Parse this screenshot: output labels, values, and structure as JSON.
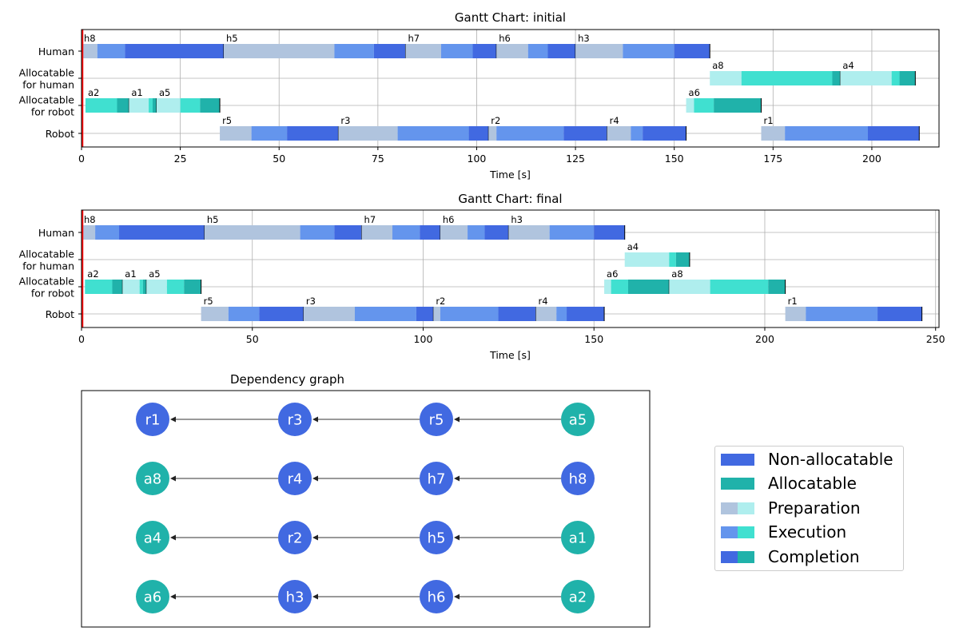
{
  "chart_data": [
    {
      "type": "gantt",
      "title": "Gantt Chart: initial",
      "xlabel": "Time [s]",
      "xlim": [
        0,
        217
      ],
      "xticks": [
        0,
        25,
        50,
        75,
        100,
        125,
        150,
        175,
        200
      ],
      "rows": [
        "Human",
        "Allocatable\nfor human",
        "Allocatable\nfor robot",
        "Robot"
      ],
      "start_marker": 0,
      "tasks": [
        {
          "name": "h8",
          "row": 0,
          "kind": "non-allocatable",
          "prep": [
            0,
            4
          ],
          "exec": [
            4,
            11
          ],
          "comp": [
            11,
            36
          ]
        },
        {
          "name": "h5",
          "row": 0,
          "kind": "non-allocatable",
          "prep": [
            36,
            64
          ],
          "exec": [
            64,
            74
          ],
          "comp": [
            74,
            82
          ]
        },
        {
          "name": "h7",
          "row": 0,
          "kind": "non-allocatable",
          "prep": [
            82,
            91
          ],
          "exec": [
            91,
            99
          ],
          "comp": [
            99,
            105
          ]
        },
        {
          "name": "h6",
          "row": 0,
          "kind": "non-allocatable",
          "prep": [
            105,
            113
          ],
          "exec": [
            113,
            118
          ],
          "comp": [
            118,
            125
          ]
        },
        {
          "name": "h3",
          "row": 0,
          "kind": "non-allocatable",
          "prep": [
            125,
            137
          ],
          "exec": [
            137,
            150
          ],
          "comp": [
            150,
            159
          ]
        },
        {
          "name": "a8",
          "row": 1,
          "kind": "allocatable",
          "prep": [
            159,
            167
          ],
          "exec": [
            167,
            190
          ],
          "comp": [
            190,
            192
          ]
        },
        {
          "name": "a4",
          "row": 1,
          "kind": "allocatable",
          "prep": [
            192,
            205
          ],
          "exec": [
            205,
            207
          ],
          "comp": [
            207,
            211
          ]
        },
        {
          "name": "a2",
          "row": 2,
          "kind": "allocatable",
          "prep": [
            1,
            1
          ],
          "exec": [
            1,
            9
          ],
          "comp": [
            9,
            12
          ]
        },
        {
          "name": "a1",
          "row": 2,
          "kind": "allocatable",
          "prep": [
            12,
            17
          ],
          "exec": [
            17,
            18
          ],
          "comp": [
            18,
            19
          ]
        },
        {
          "name": "a5",
          "row": 2,
          "kind": "allocatable",
          "prep": [
            19,
            25
          ],
          "exec": [
            25,
            30
          ],
          "comp": [
            30,
            35
          ]
        },
        {
          "name": "a6",
          "row": 2,
          "kind": "allocatable",
          "prep": [
            153,
            155
          ],
          "exec": [
            155,
            160
          ],
          "comp": [
            160,
            172
          ]
        },
        {
          "name": "r5",
          "row": 3,
          "kind": "non-allocatable",
          "prep": [
            35,
            43
          ],
          "exec": [
            43,
            52
          ],
          "comp": [
            52,
            65
          ]
        },
        {
          "name": "r3",
          "row": 3,
          "kind": "non-allocatable",
          "prep": [
            65,
            80
          ],
          "exec": [
            80,
            98
          ],
          "comp": [
            98,
            103
          ]
        },
        {
          "name": "r2",
          "row": 3,
          "kind": "non-allocatable",
          "prep": [
            103,
            105
          ],
          "exec": [
            105,
            122
          ],
          "comp": [
            122,
            133
          ]
        },
        {
          "name": "r4",
          "row": 3,
          "kind": "non-allocatable",
          "prep": [
            133,
            139
          ],
          "exec": [
            139,
            142
          ],
          "comp": [
            142,
            153
          ]
        },
        {
          "name": "r1",
          "row": 3,
          "kind": "non-allocatable",
          "prep": [
            172,
            178
          ],
          "exec": [
            178,
            199
          ],
          "comp": [
            199,
            212
          ]
        }
      ]
    },
    {
      "type": "gantt",
      "title": "Gantt Chart: final",
      "xlabel": "Time [s]",
      "xlim": [
        0,
        251
      ],
      "xticks": [
        0,
        50,
        100,
        150,
        200,
        250
      ],
      "rows": [
        "Human",
        "Allocatable\nfor human",
        "Allocatable\nfor robot",
        "Robot"
      ],
      "start_marker": 0,
      "tasks": [
        {
          "name": "h8",
          "row": 0,
          "kind": "non-allocatable",
          "prep": [
            0,
            4
          ],
          "exec": [
            4,
            11
          ],
          "comp": [
            11,
            36
          ]
        },
        {
          "name": "h5",
          "row": 0,
          "kind": "non-allocatable",
          "prep": [
            36,
            64
          ],
          "exec": [
            64,
            74
          ],
          "comp": [
            74,
            82
          ]
        },
        {
          "name": "h7",
          "row": 0,
          "kind": "non-allocatable",
          "prep": [
            82,
            91
          ],
          "exec": [
            91,
            99
          ],
          "comp": [
            99,
            105
          ]
        },
        {
          "name": "h6",
          "row": 0,
          "kind": "non-allocatable",
          "prep": [
            105,
            113
          ],
          "exec": [
            113,
            118
          ],
          "comp": [
            118,
            125
          ]
        },
        {
          "name": "h3",
          "row": 0,
          "kind": "non-allocatable",
          "prep": [
            125,
            137
          ],
          "exec": [
            137,
            150
          ],
          "comp": [
            150,
            159
          ]
        },
        {
          "name": "a4",
          "row": 1,
          "kind": "allocatable",
          "prep": [
            159,
            172
          ],
          "exec": [
            172,
            174
          ],
          "comp": [
            174,
            178
          ]
        },
        {
          "name": "a2",
          "row": 2,
          "kind": "allocatable",
          "prep": [
            1,
            1
          ],
          "exec": [
            1,
            9
          ],
          "comp": [
            9,
            12
          ]
        },
        {
          "name": "a1",
          "row": 2,
          "kind": "allocatable",
          "prep": [
            12,
            17
          ],
          "exec": [
            17,
            18
          ],
          "comp": [
            18,
            19
          ]
        },
        {
          "name": "a5",
          "row": 2,
          "kind": "allocatable",
          "prep": [
            19,
            25
          ],
          "exec": [
            25,
            30
          ],
          "comp": [
            30,
            35
          ]
        },
        {
          "name": "a6",
          "row": 2,
          "kind": "allocatable",
          "prep": [
            153,
            155
          ],
          "exec": [
            155,
            160
          ],
          "comp": [
            160,
            172
          ]
        },
        {
          "name": "a8",
          "row": 2,
          "kind": "allocatable",
          "prep": [
            172,
            184
          ],
          "exec": [
            184,
            201
          ],
          "comp": [
            201,
            206
          ]
        },
        {
          "name": "r5",
          "row": 3,
          "kind": "non-allocatable",
          "prep": [
            35,
            43
          ],
          "exec": [
            43,
            52
          ],
          "comp": [
            52,
            65
          ]
        },
        {
          "name": "r3",
          "row": 3,
          "kind": "non-allocatable",
          "prep": [
            65,
            80
          ],
          "exec": [
            80,
            98
          ],
          "comp": [
            98,
            103
          ]
        },
        {
          "name": "r2",
          "row": 3,
          "kind": "non-allocatable",
          "prep": [
            103,
            105
          ],
          "exec": [
            105,
            122
          ],
          "comp": [
            122,
            133
          ]
        },
        {
          "name": "r4",
          "row": 3,
          "kind": "non-allocatable",
          "prep": [
            133,
            139
          ],
          "exec": [
            139,
            142
          ],
          "comp": [
            142,
            153
          ]
        },
        {
          "name": "r1",
          "row": 3,
          "kind": "non-allocatable",
          "prep": [
            206,
            212
          ],
          "exec": [
            212,
            233
          ],
          "comp": [
            233,
            246
          ]
        }
      ]
    },
    {
      "type": "graph",
      "title": "Dependency graph",
      "columns": 4,
      "node_rows": [
        [
          "r1",
          "r3",
          "r5",
          "a5"
        ],
        [
          "a8",
          "r4",
          "h7",
          "h8"
        ],
        [
          "a4",
          "r2",
          "h5",
          "a1"
        ],
        [
          "a6",
          "h3",
          "h6",
          "a2"
        ]
      ],
      "node_kinds": {
        "r1": "non-allocatable",
        "r3": "non-allocatable",
        "r5": "non-allocatable",
        "a5": "allocatable",
        "a8": "allocatable",
        "r4": "non-allocatable",
        "h7": "non-allocatable",
        "h8": "non-allocatable",
        "a4": "allocatable",
        "r2": "non-allocatable",
        "h5": "non-allocatable",
        "a1": "allocatable",
        "a6": "allocatable",
        "h3": "non-allocatable",
        "h6": "non-allocatable",
        "a2": "allocatable"
      },
      "edges": [
        [
          "a5",
          "r5"
        ],
        [
          "r5",
          "r3"
        ],
        [
          "r3",
          "r1"
        ],
        [
          "h8",
          "h7"
        ],
        [
          "h7",
          "r4"
        ],
        [
          "r4",
          "a8"
        ],
        [
          "a1",
          "h5"
        ],
        [
          "h5",
          "r2"
        ],
        [
          "r2",
          "a4"
        ],
        [
          "a2",
          "h6"
        ],
        [
          "h6",
          "h3"
        ],
        [
          "h3",
          "a6"
        ]
      ]
    }
  ],
  "legend": [
    {
      "label": "Non-allocatable",
      "colors": [
        "#4169e1",
        "#4169e1"
      ]
    },
    {
      "label": "Allocatable",
      "colors": [
        "#20b2aa",
        "#20b2aa"
      ]
    },
    {
      "label": "Preparation",
      "colors": [
        "#b0c4de",
        "#afeeee"
      ]
    },
    {
      "label": "Execution",
      "colors": [
        "#6495ed",
        "#40e0d0"
      ]
    },
    {
      "label": "Completion",
      "colors": [
        "#4169e1",
        "#20b2aa"
      ]
    }
  ],
  "colors": {
    "non_allocatable": {
      "prep": "#b0c4de",
      "exec": "#6495ed",
      "comp": "#4169e1"
    },
    "allocatable": {
      "prep": "#afeeee",
      "exec": "#40e0d0",
      "comp": "#20b2aa"
    },
    "start_marker": "#ff0000",
    "grid": "#b0b0b0"
  }
}
